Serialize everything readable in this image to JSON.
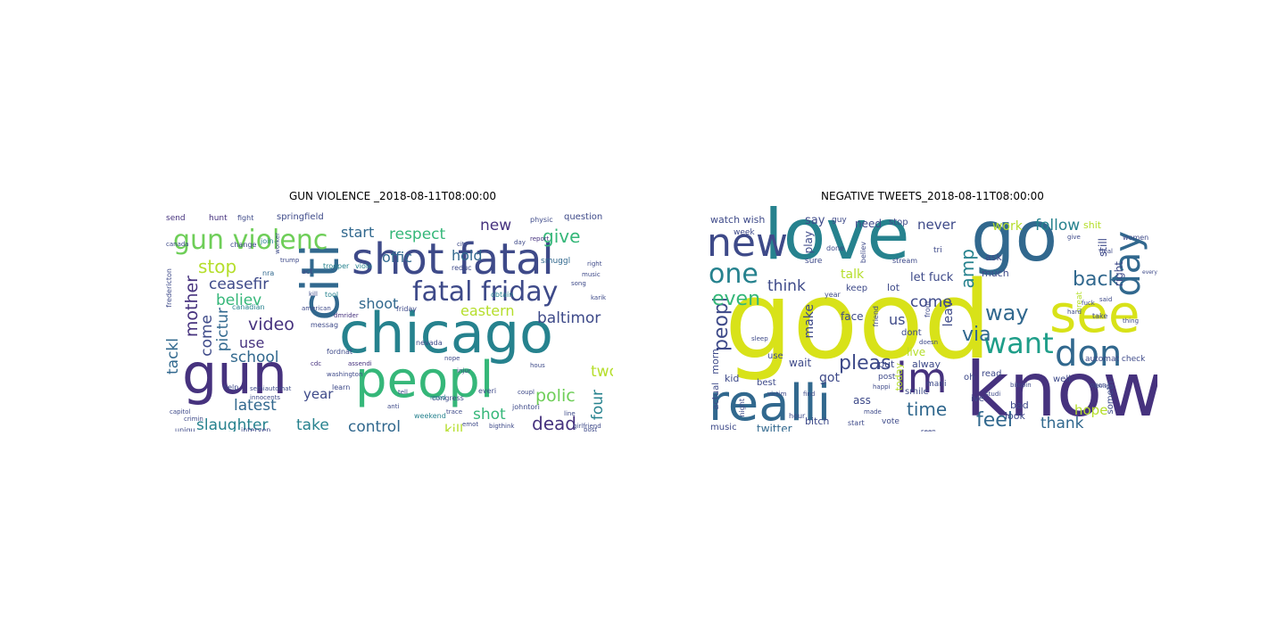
{
  "palette": {
    "dark_purple": "#46327e",
    "indigo": "#3e4a89",
    "blue": "#31688e",
    "teal": "#26828e",
    "green_teal": "#1f9e89",
    "green": "#35b779",
    "light_green": "#6ece58",
    "lime": "#b5de2b",
    "yellow": "#d8e219"
  },
  "left": {
    "title": "GUN VIOLENCE _2018-08-11T08:00:00",
    "words": {
      "chicago": "chicago",
      "gun": "gun",
      "peopl": "peopl",
      "citi": "citi",
      "shot_fatal": "shot fatal",
      "fatal_friday": "fatal friday",
      "gun_violenc": "gun violenc",
      "stop": "stop",
      "ceasefir": "ceasefir",
      "believ": "believ",
      "mother": "mother",
      "video": "video",
      "use": "use",
      "school": "school",
      "come": "come",
      "pictur": "pictur",
      "tackl": "tackl",
      "latest": "latest",
      "year": "year",
      "slaughter": "slaughter",
      "take": "take",
      "control": "control",
      "kill": "kill",
      "shot": "shot",
      "dead": "dead",
      "polic": "polic",
      "two": "two",
      "four": "four",
      "baltimor": "baltimor",
      "eastern": "eastern",
      "respect": "respect",
      "give": "give",
      "new": "new",
      "hold": "hold",
      "offic": "offic",
      "start": "start",
      "shoot": "shoot",
      "springfield": "springfield",
      "hunt": "hunt",
      "fight": "fight",
      "send": "send",
      "question": "question",
      "physic": "physic",
      "smuggl": "smuggl",
      "join": "join",
      "trooper": "trooper",
      "viole": "viole",
      "tool": "tool",
      "nra": "nra",
      "canadian": "canadian",
      "fordnat": "fordnat",
      "messag": "messag",
      "cdc": "cdc",
      "assendi": "assendi",
      "dmrider": "dmrider",
      "obtain": "obtain",
      "friday_sm": "friday",
      "nevada": "nevada",
      "congress": "congress",
      "weekend": "weekend",
      "need": "need",
      "johntori": "johntori",
      "bigthink": "bigthink",
      "richunderhil": "richunderhil",
      "america": "america",
      "report": "report",
      "reduc": "reduc",
      "song": "song",
      "city": "city",
      "day": "day",
      "trump": "trump",
      "canada": "canada",
      "fredericton": "fredericton",
      "semiautomat": "semiautomat",
      "innocents": "innocents",
      "change": "change",
      "worker": "worker",
      "act": "act",
      "help": "help",
      "learn": "learn",
      "anti": "anti",
      "everi": "everi",
      "line": "line",
      "trace": "trace",
      "emot": "emot",
      "uniqu": "uniqu",
      "crimin": "crimin",
      "interven": "interven",
      "erupt": "erupt",
      "capitol": "capitol",
      "democrat": "democrat",
      "armori": "armori",
      "actual": "actual",
      "right": "right",
      "girlfriend": "girlfriend",
      "american": "american",
      "washington": "washington",
      "kill_sm": "kill",
      "coupl": "coupl",
      "nope": "nope",
      "music": "music",
      "karik": "karik",
      "hous": "hous",
      "post": "post",
      "tell": "tell",
      "injur": "injur"
    }
  },
  "right": {
    "title": "NEGATIVE TWEETS_2018-08-11T08:00:00",
    "words": {
      "good": "good",
      "love": "love",
      "go": "go",
      "know": "know",
      "realli": "realli",
      "new": "new",
      "one": "one",
      "see": "see",
      "day": "day",
      "im": "im",
      "don": "don",
      "want": "want",
      "way": "way",
      "via": "via",
      "peopl": "peopl",
      "even": "even",
      "pleas": "pleas",
      "amp": "amp",
      "back": "back",
      "follow": "follow",
      "work": "work",
      "feel": "feel",
      "thank": "thank",
      "hope": "hope",
      "time": "time",
      "us": "us",
      "come": "come",
      "think": "think",
      "make": "make",
      "got": "got",
      "wait": "wait",
      "kid": "kid",
      "best": "best",
      "twitter": "twitter",
      "music": "music",
      "morn": "morn",
      "actual": "actual",
      "watch_wish": "watch wish",
      "say": "say",
      "guy": "guy",
      "need": "need",
      "stop": "stop",
      "never": "never",
      "ask": "ask",
      "much": "much",
      "let_fuck": "let fuck",
      "talk": "talk",
      "keep": "keep",
      "face": "face",
      "play": "play",
      "right": "right",
      "still": "still",
      "women": "women",
      "shit": "shit",
      "tri": "tri",
      "stream": "stream",
      "live": "live",
      "alway": "alway",
      "read": "read",
      "put": "put",
      "smile": "smile",
      "ass": "ass",
      "bitch": "bitch",
      "start": "start",
      "vote": "vote",
      "lot": "lot",
      "dont": "dont",
      "leav": "leav",
      "today": "today",
      "friend": "friend",
      "use": "use",
      "week": "week",
      "sure": "sure",
      "year": "year",
      "look": "look",
      "someth": "someth",
      "oh": "oh",
      "ive": "ive",
      "bad": "bad",
      "well": "well",
      "take": "take",
      "bitcoin": "bitcoin",
      "automat_check": "automat check",
      "victim": "victim",
      "hour": "hour",
      "find": "find",
      "night": "night",
      "mani": "mani",
      "post": "post",
      "believ": "believ",
      "done": "done",
      "great": "great",
      "said": "said",
      "deal": "deal",
      "hard": "hard",
      "thing": "thing",
      "give": "give",
      "made": "made",
      "seen": "seen",
      "open": "open",
      "happi": "happi",
      "sleep": "sleep",
      "front": "front",
      "doesn": "doesn",
      "studi": "studi",
      "everyon": "everyon",
      "fuck": "fuck",
      "poison": "poison"
    }
  }
}
